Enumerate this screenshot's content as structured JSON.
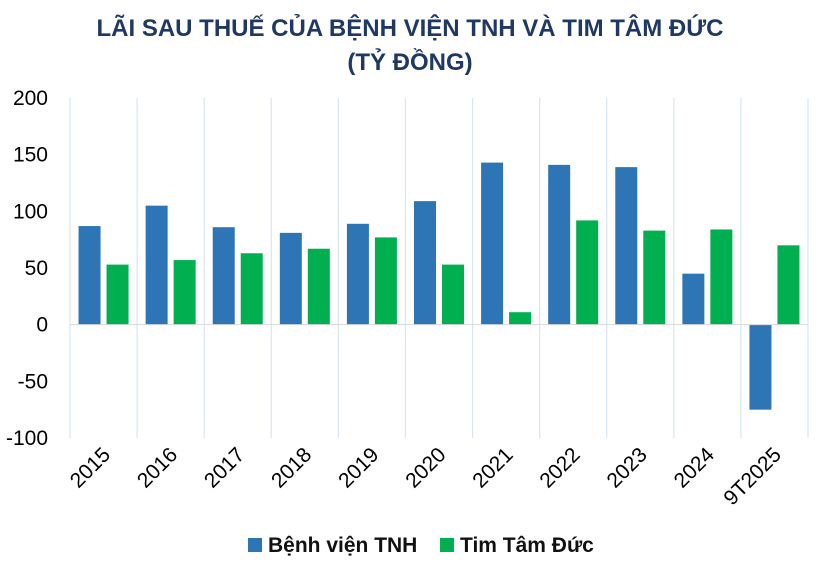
{
  "chart_data": {
    "type": "bar",
    "title": "LÃI SAU THUẾ CỦA BỆNH VIỆN TNH VÀ TIM TÂM ĐỨC",
    "subtitle": "(TỶ ĐỒNG)",
    "xlabel": "",
    "ylabel": "",
    "categories": [
      "2015",
      "2016",
      "2017",
      "2018",
      "2019",
      "2020",
      "2021",
      "2022",
      "2023",
      "2024",
      "9T2025"
    ],
    "series": [
      {
        "name": "Bệnh viện TNH",
        "color": "#2e75b6",
        "values": [
          87,
          105,
          86,
          81,
          89,
          109,
          143,
          141,
          139,
          45,
          -75
        ]
      },
      {
        "name": "Tim Tâm Đức",
        "color": "#00b050",
        "values": [
          53,
          57,
          63,
          67,
          77,
          53,
          11,
          92,
          83,
          84,
          70
        ]
      }
    ],
    "ylim": [
      -100,
      200
    ],
    "yticks": [
      "200",
      "150",
      "100",
      "50",
      "0",
      "-50",
      "-100"
    ],
    "grid": "vertical",
    "legend": "bottom",
    "colors": {
      "title": "#1f3864",
      "gridline": "#d6e6f2",
      "axis": "#d9d9d9"
    }
  }
}
